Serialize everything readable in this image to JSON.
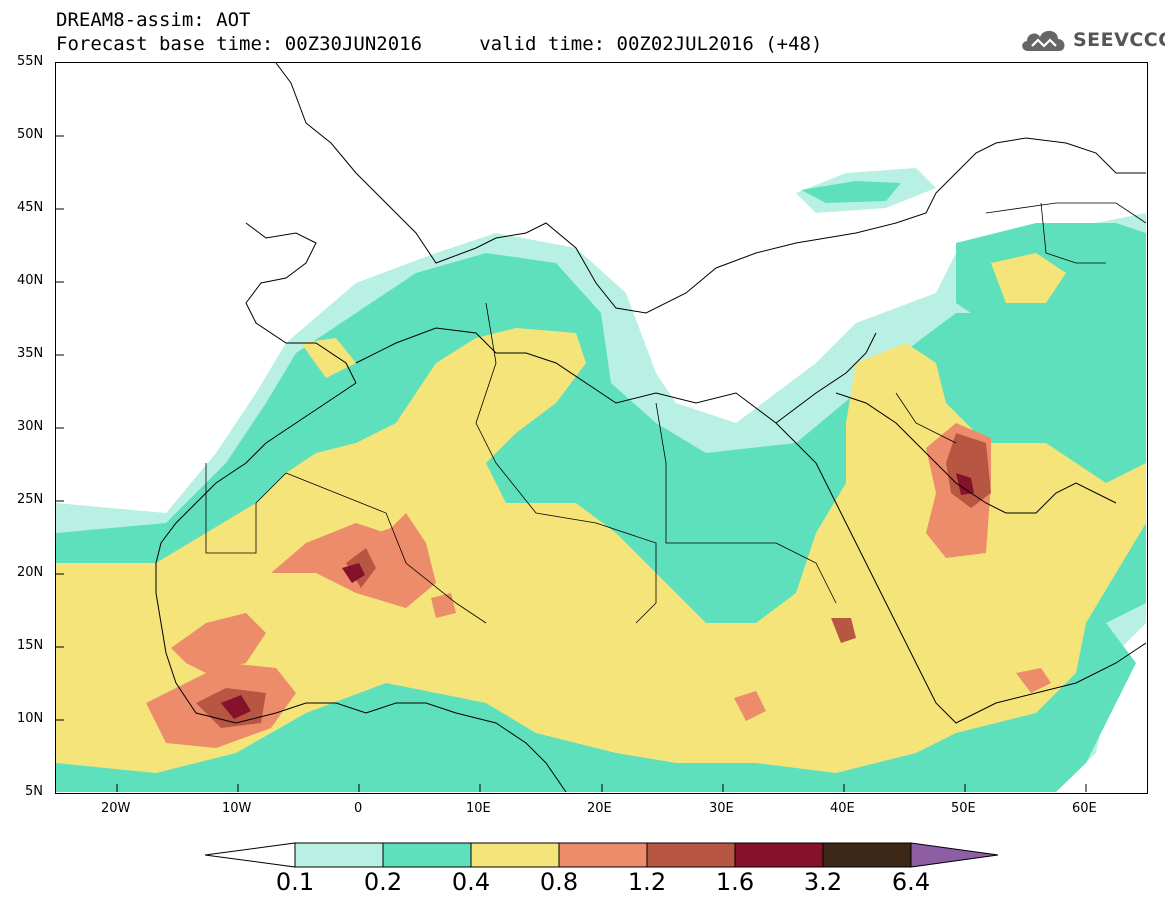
{
  "header": {
    "line1": "DREAM8-assim: AOT",
    "line2": "Forecast base time: 00Z30JUN2016     valid time: 00Z02JUL2016 (+48)"
  },
  "logo": {
    "icon": "cloud-icon",
    "text": "SEEVCCC"
  },
  "map": {
    "lat_labels": [
      "55N",
      "50N",
      "45N",
      "40N",
      "35N",
      "30N",
      "25N",
      "20N",
      "15N",
      "10N",
      "5N"
    ],
    "lon_labels": [
      "20W",
      "10W",
      "0",
      "10E",
      "20E",
      "30E",
      "40E",
      "50E",
      "60E"
    ],
    "lat_range": [
      5,
      55
    ],
    "lon_range": [
      -25,
      65
    ]
  },
  "colorbar": {
    "labels": [
      "0.1",
      "0.2",
      "0.4",
      "0.8",
      "1.2",
      "1.6",
      "3.2",
      "6.4"
    ],
    "colors": [
      "#b9f0e4",
      "#5ee0bc",
      "#f5e47a",
      "#ec8c6a",
      "#b85644",
      "#85112b",
      "#3d2817",
      "#8e5ea4"
    ]
  }
}
